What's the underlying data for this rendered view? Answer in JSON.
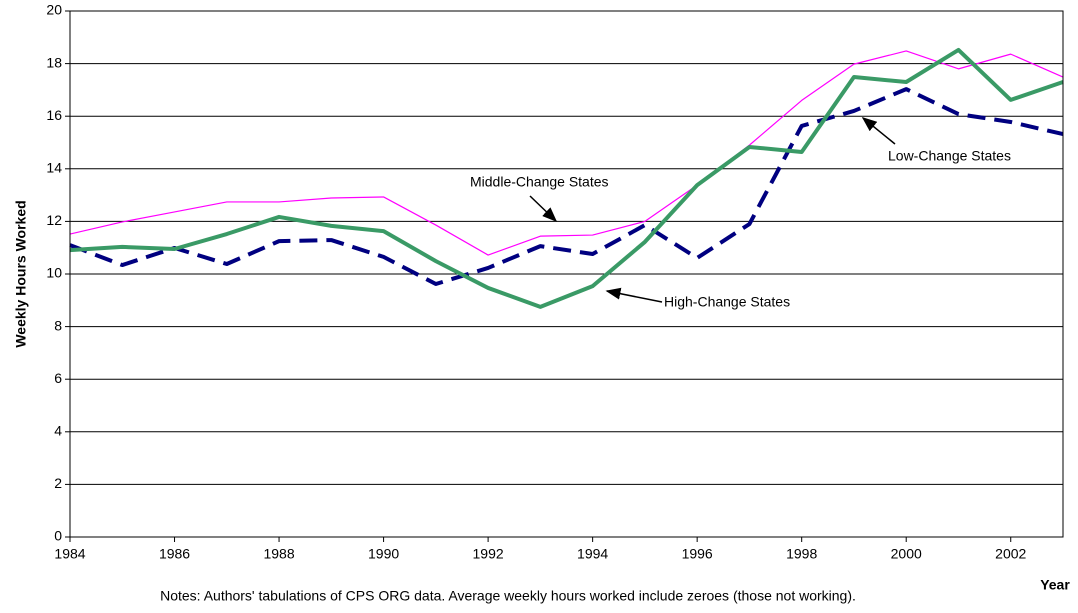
{
  "chart_data": {
    "type": "line",
    "y_label": "Weekly Hours Worked",
    "x_label": "Year",
    "note": "Notes: Authors' tabulations of CPS ORG data.  Average weekly hours worked include zeroes (those not working).",
    "x": [
      1984,
      1985,
      1986,
      1987,
      1988,
      1989,
      1990,
      1991,
      1992,
      1993,
      1994,
      1995,
      1996,
      1997,
      1998,
      1999,
      2000,
      2001,
      2002,
      2003
    ],
    "series": [
      {
        "name": "Middle-Change States",
        "color": "#ff00ff",
        "width": 1.2,
        "dash": "none",
        "values": [
          11.52,
          11.98,
          12.36,
          12.74,
          12.74,
          12.89,
          12.93,
          11.86,
          10.72,
          11.44,
          11.48,
          12.0,
          13.38,
          14.9,
          16.6,
          17.98,
          18.48,
          17.8,
          18.36,
          17.49
        ]
      },
      {
        "name": "Low-Change States",
        "color": "#000080",
        "width": 4,
        "dash": "18 9",
        "values": [
          11.1,
          10.34,
          10.99,
          10.38,
          11.25,
          11.29,
          10.65,
          9.62,
          10.23,
          11.06,
          10.76,
          11.86,
          10.61,
          11.9,
          15.63,
          16.2,
          17.03,
          16.08,
          15.78,
          15.32
        ]
      },
      {
        "name": "High-Change States",
        "color": "#3a9a66",
        "width": 4,
        "dash": "none",
        "values": [
          10.91,
          11.03,
          10.95,
          11.52,
          12.17,
          11.83,
          11.63,
          10.49,
          9.47,
          8.75,
          9.54,
          11.22,
          13.38,
          14.83,
          14.64,
          17.49,
          17.3,
          18.52,
          16.62,
          17.3
        ]
      }
    ],
    "xlim": [
      1984,
      2003
    ],
    "xticks": [
      1984,
      1986,
      1988,
      1990,
      1992,
      1994,
      1996,
      1998,
      2000,
      2002
    ],
    "ylim": [
      0,
      20
    ],
    "yticks": [
      0,
      2,
      4,
      6,
      8,
      10,
      12,
      14,
      16,
      18,
      20
    ],
    "grid": true
  }
}
